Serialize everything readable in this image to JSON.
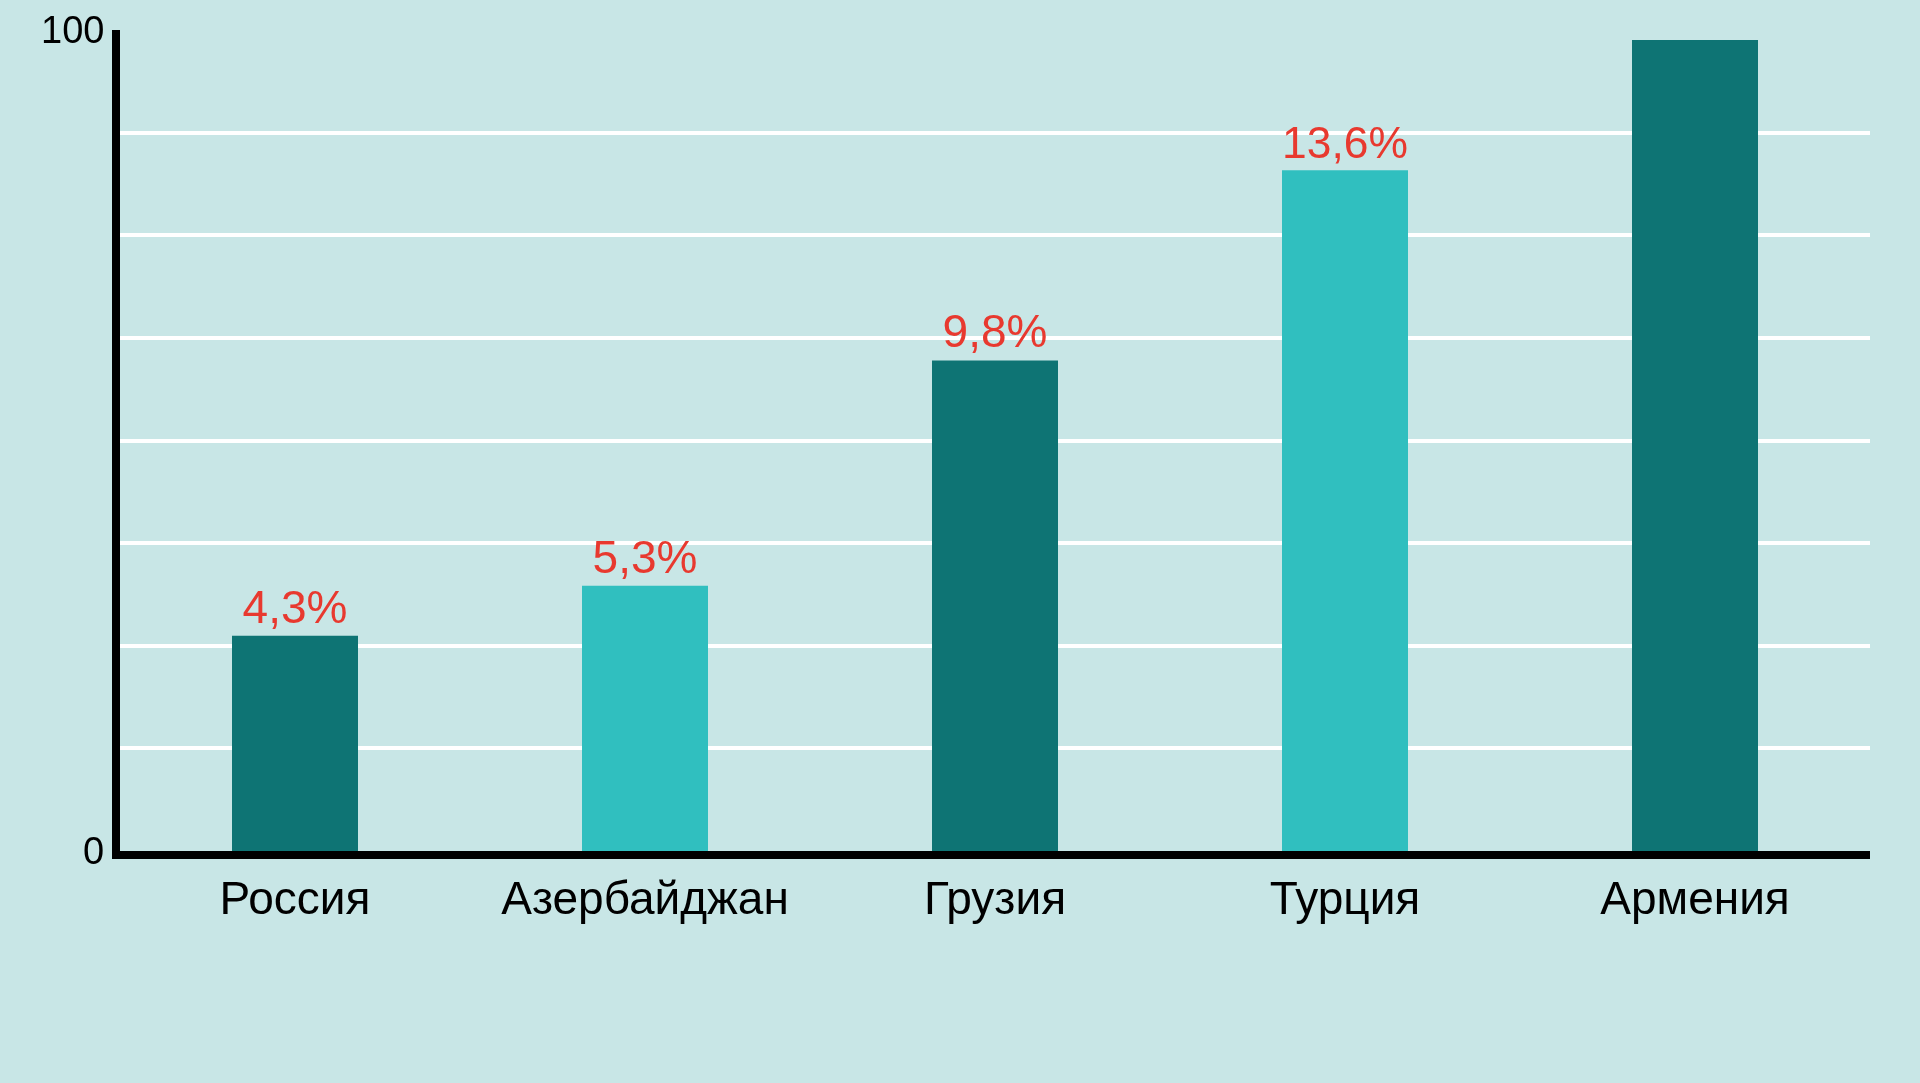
{
  "chart_data": {
    "type": "bar",
    "categories": [
      "Россия",
      "Азербайджан",
      "Грузия",
      "Турция",
      "Армения"
    ],
    "values": [
      4.3,
      5.3,
      9.8,
      13.6,
      16.2
    ],
    "colors": [
      "#0e7474",
      "#30bfbf",
      "#0e7474",
      "#30bfbf",
      "#0e7474"
    ],
    "value_labels": [
      "4,3%",
      "5,3%",
      "9,8%",
      "13,6%",
      null
    ],
    "ylim": [
      0,
      16.4
    ],
    "yticks": [
      {
        "value": 2.05,
        "label": null
      },
      {
        "value": 4.1,
        "label": null
      },
      {
        "value": 6.15,
        "label": null
      },
      {
        "value": 8.2,
        "label": null
      },
      {
        "value": 10.25,
        "label": null
      },
      {
        "value": 12.3,
        "label": null
      },
      {
        "value": 14.35,
        "label": null
      }
    ],
    "annotations": [
      "0",
      "100"
    ],
    "grid": "y"
  }
}
